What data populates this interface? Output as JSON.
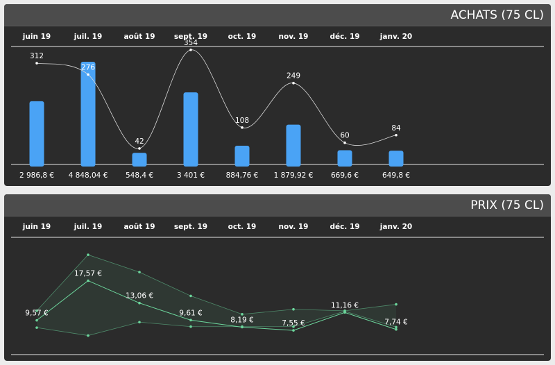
{
  "colors": {
    "panel_bg": "#2b2b2b",
    "header_bg": "#4c4c4c",
    "bar": "#4aa3f5",
    "line_white": "#d8d8d8",
    "line_green": "#6cd69c"
  },
  "achats_panel": {
    "title": "ACHATS (75 CL)"
  },
  "prix_panel": {
    "title": "PRIX (75 CL)"
  },
  "chart_data": [
    {
      "type": "bar",
      "categories": [
        "juin 19",
        "juil. 19",
        "août 19",
        "sept. 19",
        "oct. 19",
        "nov. 19",
        "déc. 19",
        "janv. 20"
      ],
      "series": [
        {
          "values": [
            2986.8,
            4848.04,
            548.4,
            3401,
            884.76,
            1879.92,
            669.6,
            649.8
          ]
        },
        {
          "values": [
            312,
            276,
            42,
            354,
            108,
            249,
            60,
            84
          ]
        }
      ],
      "bar_labels": [
        "2 986,8 €",
        "4 848,04 €",
        "548,4 €",
        "3 401 €",
        "884,76 €",
        "1 879,92 €",
        "669,6 €",
        "649,8 €"
      ],
      "line_labels": [
        "312",
        "276",
        "42",
        "354",
        "108",
        "249",
        "60",
        "84"
      ],
      "ylim_bar": [
        0,
        4848.04
      ],
      "ylim_line": [
        0,
        400
      ]
    },
    {
      "type": "line",
      "categories": [
        "juin 19",
        "juil. 19",
        "août 19",
        "sept. 19",
        "oct. 19",
        "nov. 19",
        "déc. 19",
        "janv. 20"
      ],
      "series": [
        {
          "values": [
            9.57,
            17.57,
            13.06,
            9.61,
            8.19,
            7.55,
            11.16,
            7.74
          ]
        },
        {
          "values": [
            11.5,
            22.8,
            19.3,
            14.5,
            10.8,
            11.8,
            11.5,
            12.8
          ]
        },
        {
          "values": [
            8.1,
            6.5,
            9.2,
            8.3,
            8.3,
            8.3,
            11.4,
            8.2
          ]
        }
      ],
      "labels": [
        "9,57 €",
        "17,57 €",
        "13,06 €",
        "9,61 €",
        "8,19 €",
        "7,55 €",
        "11,16 €",
        "7,74 €"
      ],
      "ylim": [
        0,
        28
      ]
    }
  ]
}
